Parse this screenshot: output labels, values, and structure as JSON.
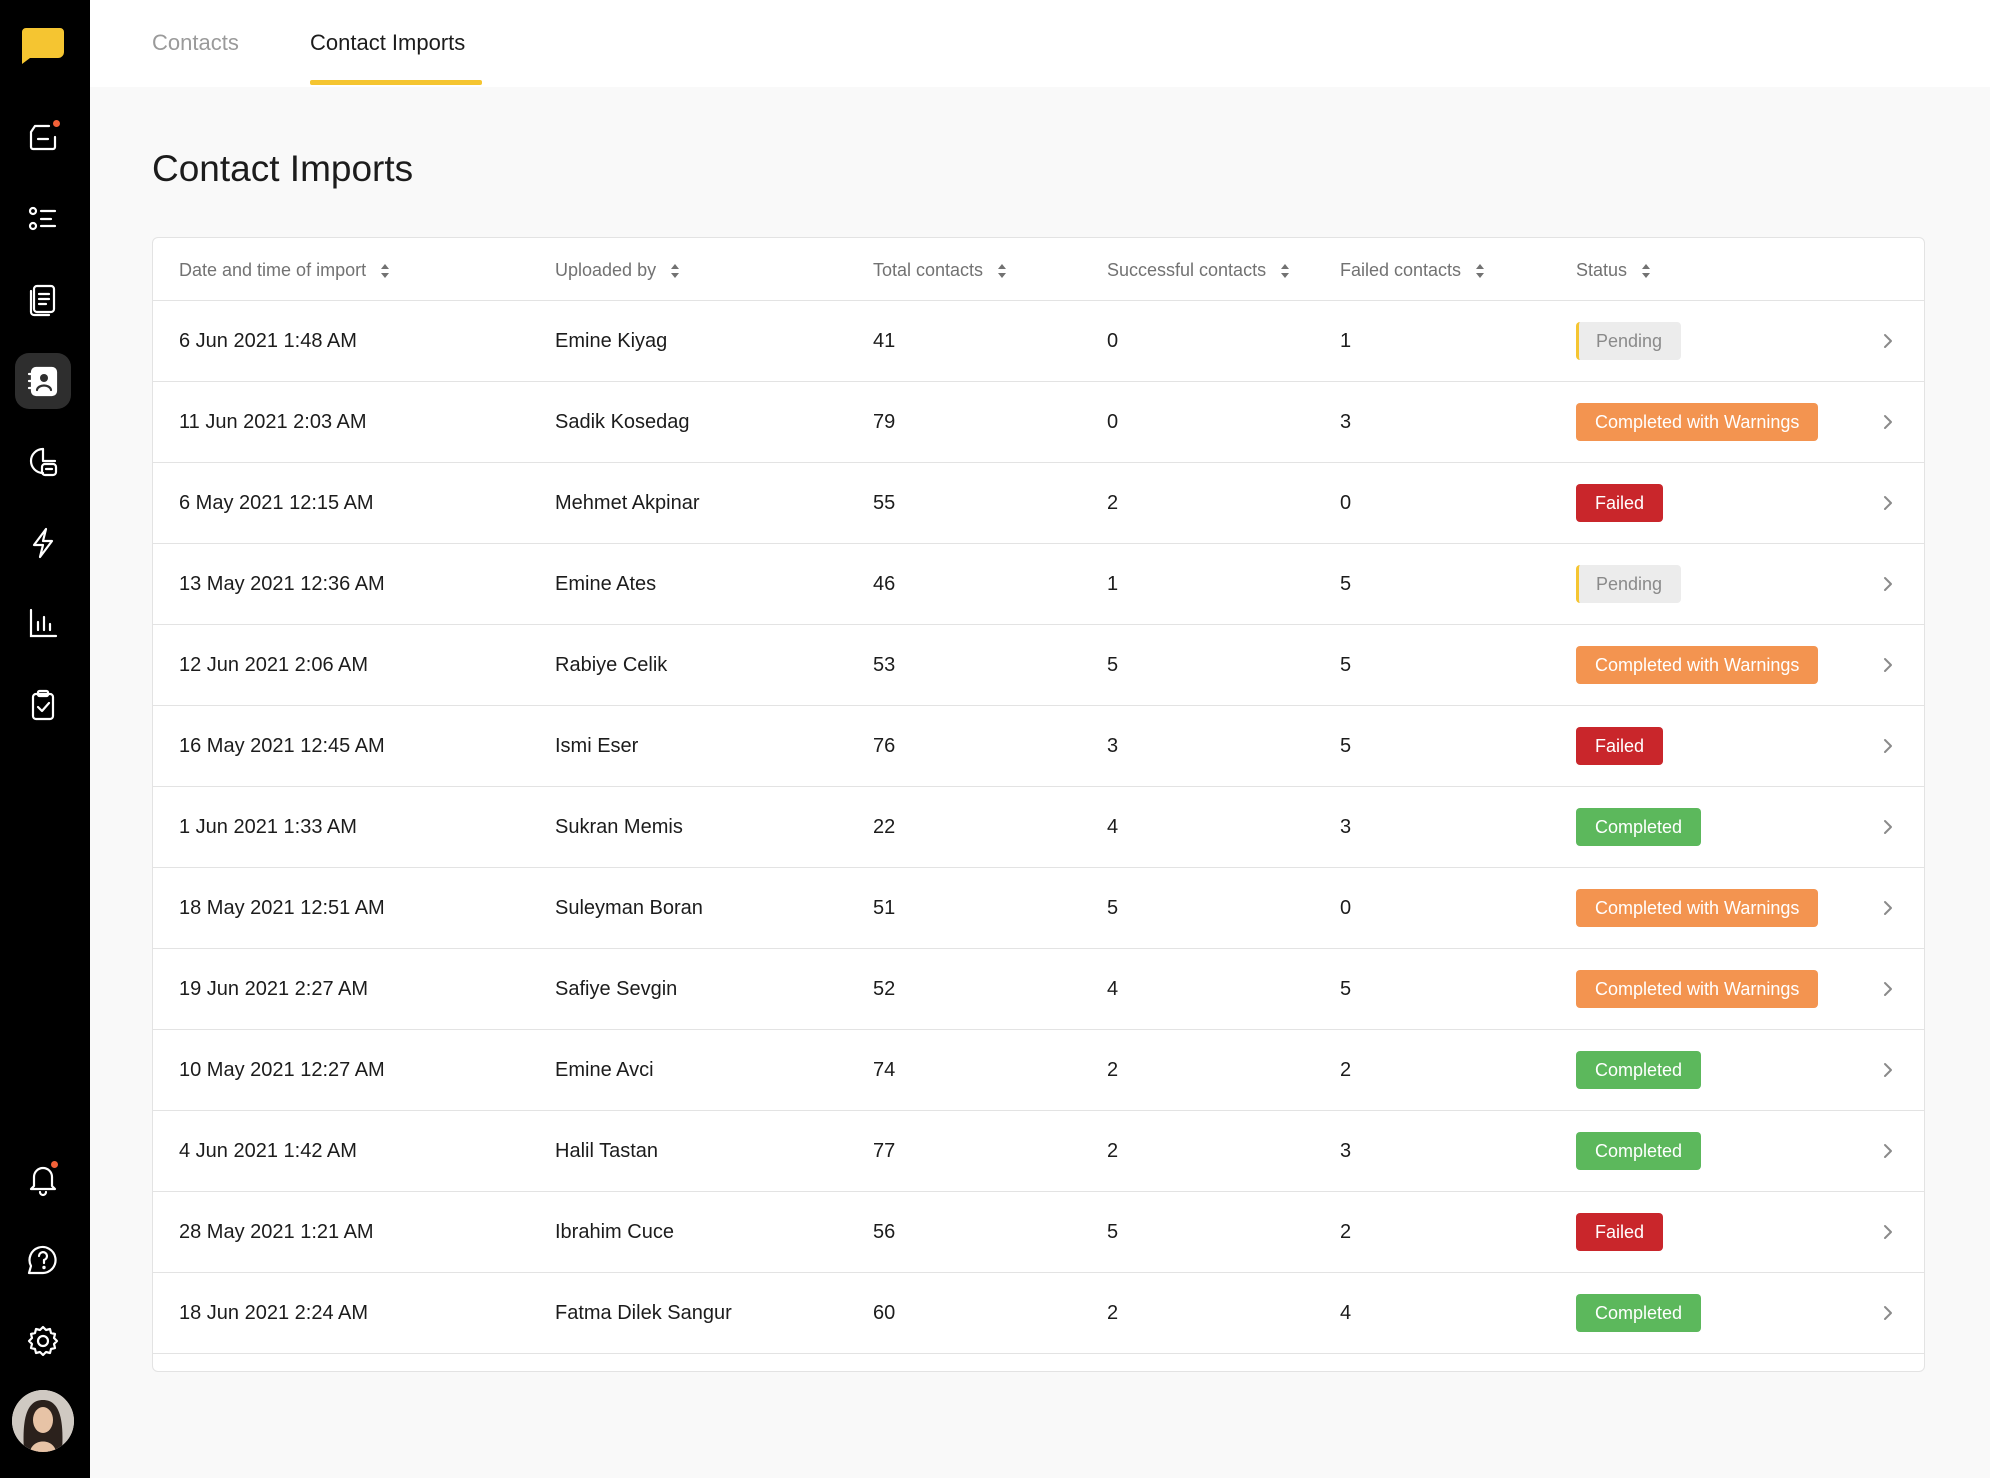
{
  "sidebar": {
    "items": [
      {
        "icon": "inbox-icon",
        "badge": true
      },
      {
        "icon": "list-icon"
      },
      {
        "icon": "documents-icon"
      },
      {
        "icon": "contacts-icon",
        "active": true
      },
      {
        "icon": "reports-chat-icon"
      },
      {
        "icon": "automation-bolt-icon"
      },
      {
        "icon": "analytics-bar-chart-icon"
      },
      {
        "icon": "tasks-clipboard-icon"
      }
    ],
    "bottom": [
      {
        "icon": "bell-icon",
        "badge": true
      },
      {
        "icon": "help-icon"
      },
      {
        "icon": "gear-icon"
      }
    ]
  },
  "tabs": [
    {
      "label": "Contacts",
      "active": false
    },
    {
      "label": "Contact Imports",
      "active": true
    }
  ],
  "page_title": "Contact Imports",
  "columns": [
    "Date and time of import",
    "Uploaded by",
    "Total contacts",
    "Successful contacts",
    "Failed contacts",
    "Status"
  ],
  "rows": [
    {
      "date": "6 Jun 2021 1:48 AM",
      "uploaded_by": "Emine Kiyag",
      "total": "41",
      "successful": "0",
      "failed": "1",
      "status": "Pending",
      "status_type": "pending"
    },
    {
      "date": "11 Jun 2021 2:03 AM",
      "uploaded_by": "Sadik Kosedag",
      "total": "79",
      "successful": "0",
      "failed": "3",
      "status": "Completed with Warnings",
      "status_type": "warn"
    },
    {
      "date": "6 May 2021 12:15 AM",
      "uploaded_by": "Mehmet Akpinar",
      "total": "55",
      "successful": "2",
      "failed": "0",
      "status": "Failed",
      "status_type": "failed"
    },
    {
      "date": "13 May 2021 12:36 AM",
      "uploaded_by": "Emine Ates",
      "total": "46",
      "successful": "1",
      "failed": "5",
      "status": "Pending",
      "status_type": "pending"
    },
    {
      "date": "12 Jun 2021 2:06 AM",
      "uploaded_by": "Rabiye Celik",
      "total": "53",
      "successful": "5",
      "failed": "5",
      "status": "Completed with Warnings",
      "status_type": "warn"
    },
    {
      "date": "16 May 2021 12:45 AM",
      "uploaded_by": "Ismi Eser",
      "total": "76",
      "successful": "3",
      "failed": "5",
      "status": "Failed",
      "status_type": "failed"
    },
    {
      "date": "1 Jun 2021 1:33 AM",
      "uploaded_by": "Sukran Memis",
      "total": "22",
      "successful": "4",
      "failed": "3",
      "status": "Completed",
      "status_type": "completed"
    },
    {
      "date": "18 May 2021 12:51 AM",
      "uploaded_by": "Suleyman Boran",
      "total": "51",
      "successful": "5",
      "failed": "0",
      "status": "Completed with Warnings",
      "status_type": "warn"
    },
    {
      "date": "19 Jun 2021 2:27 AM",
      "uploaded_by": "Safiye Sevgin",
      "total": "52",
      "successful": "4",
      "failed": "5",
      "status": "Completed with Warnings",
      "status_type": "warn"
    },
    {
      "date": "10 May 2021 12:27 AM",
      "uploaded_by": "Emine Avci",
      "total": "74",
      "successful": "2",
      "failed": "2",
      "status": "Completed",
      "status_type": "completed"
    },
    {
      "date": "4 Jun 2021 1:42 AM",
      "uploaded_by": "Halil Tastan",
      "total": "77",
      "successful": "2",
      "failed": "3",
      "status": "Completed",
      "status_type": "completed"
    },
    {
      "date": "28 May 2021 1:21 AM",
      "uploaded_by": "Ibrahim Cuce",
      "total": "56",
      "successful": "5",
      "failed": "2",
      "status": "Failed",
      "status_type": "failed"
    },
    {
      "date": "18 Jun 2021 2:24 AM",
      "uploaded_by": "Fatma Dilek Sangur",
      "total": "60",
      "successful": "2",
      "failed": "4",
      "status": "Completed",
      "status_type": "completed"
    }
  ],
  "colors": {
    "accent": "#f5c531",
    "warn": "#f39450",
    "failed": "#c9262b",
    "completed": "#5cb85c",
    "pending": "#ececec"
  }
}
